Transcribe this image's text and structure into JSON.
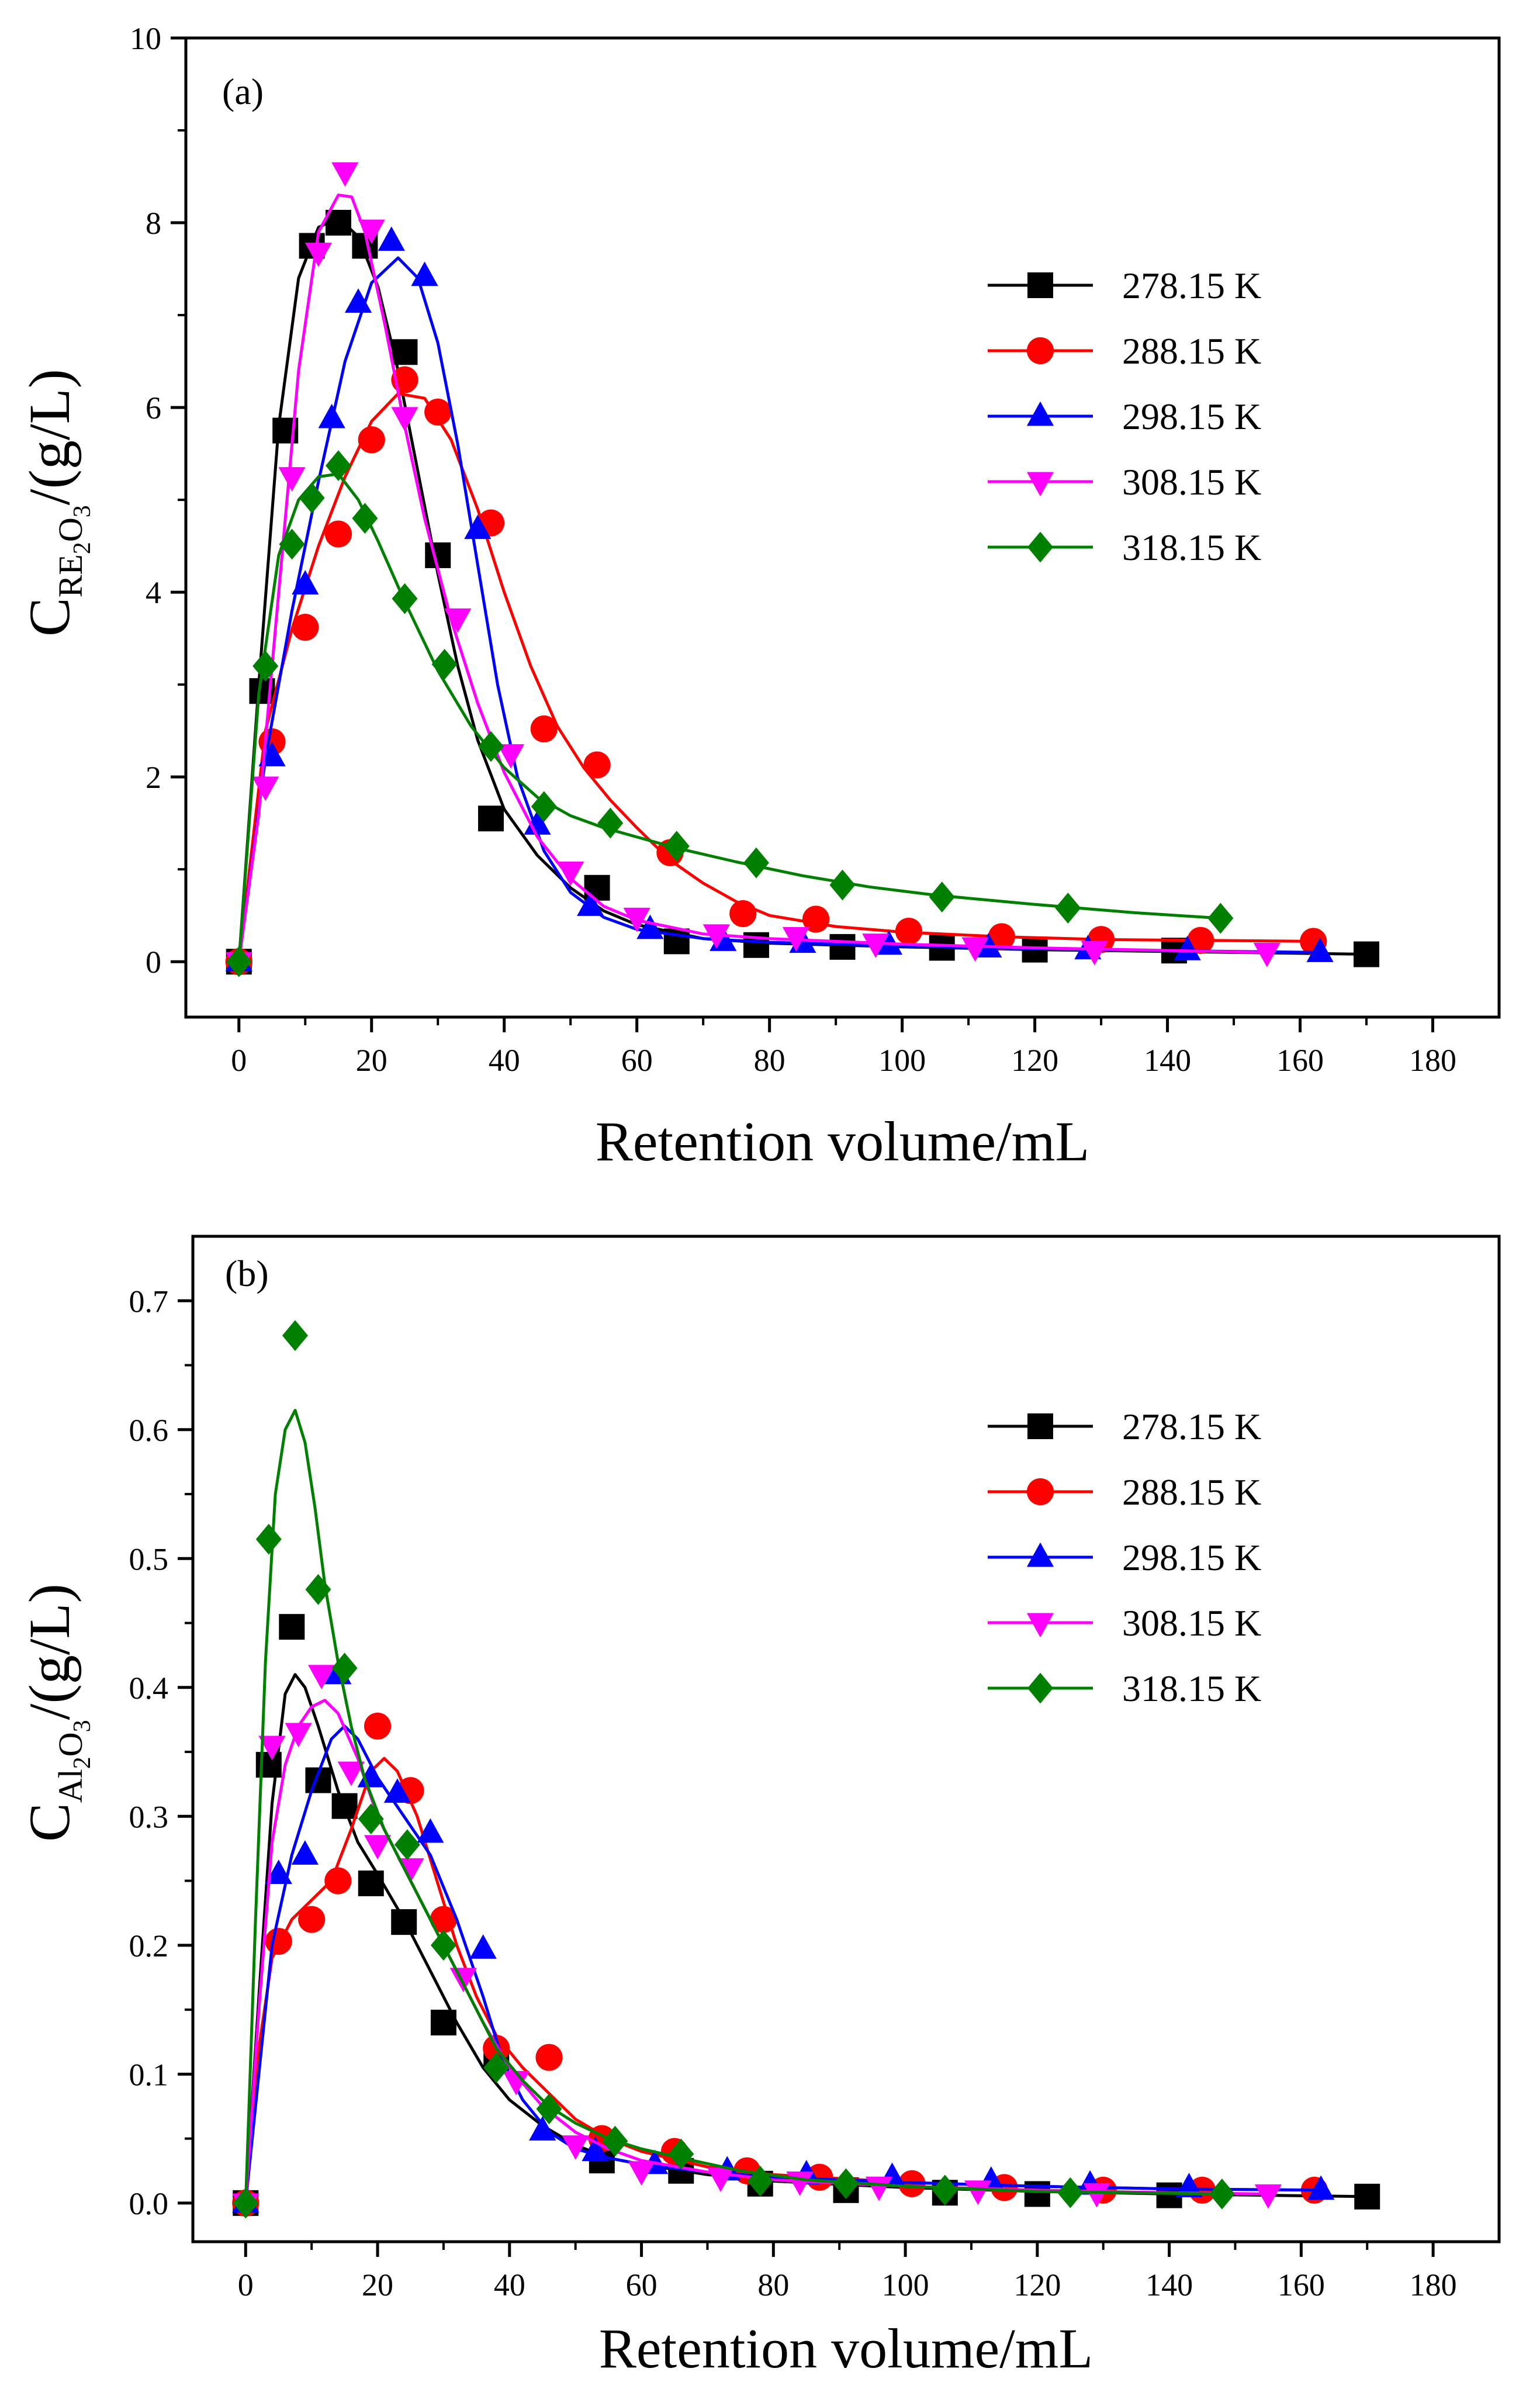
{
  "chart_data": [
    {
      "type": "scatter",
      "panel_label": "(a)",
      "xlabel": "Retention volume/mL",
      "ylabel": {
        "main": "C",
        "sub1": "RE",
        "sub2": "2",
        "sub3": "O",
        "sub4": "3",
        "rest": "/(g/L)"
      },
      "xlim": [
        -8,
        190
      ],
      "ylim": [
        -0.6,
        10
      ],
      "xticks": [
        0,
        20,
        40,
        60,
        80,
        100,
        120,
        140,
        160,
        180
      ],
      "yticks": [
        0,
        2,
        4,
        6,
        8,
        10
      ],
      "xtick_labels": [
        "0",
        "20",
        "40",
        "60",
        "80",
        "100",
        "120",
        "140",
        "160",
        "180"
      ],
      "ytick_labels": [
        "0",
        "2",
        "4",
        "6",
        "8",
        "10"
      ],
      "legend_position": "right",
      "series": [
        {
          "name": "278.15 K",
          "color": "#000000",
          "marker": "square",
          "x": [
            0,
            3.5,
            7,
            11,
            15,
            19,
            25,
            30,
            38,
            54,
            66,
            78,
            91,
            106,
            120,
            141,
            170
          ],
          "y": [
            0,
            2.93,
            5.75,
            7.75,
            8.0,
            7.75,
            6.6,
            4.4,
            1.55,
            0.8,
            0.22,
            0.18,
            0.16,
            0.15,
            0.13,
            0.12,
            0.08
          ],
          "curve_x": [
            0,
            3,
            6,
            9,
            12,
            15,
            18,
            21,
            24,
            27,
            30,
            33,
            36,
            40,
            45,
            50,
            55,
            60,
            70,
            80,
            100,
            120,
            140,
            170
          ],
          "curve_y": [
            0,
            3.0,
            5.8,
            7.4,
            7.95,
            8.05,
            7.85,
            7.3,
            6.4,
            5.3,
            4.2,
            3.2,
            2.4,
            1.65,
            1.15,
            0.8,
            0.55,
            0.4,
            0.25,
            0.2,
            0.16,
            0.13,
            0.11,
            0.08
          ]
        },
        {
          "name": "288.15 K",
          "color": "#ff0000",
          "marker": "circle",
          "x": [
            0,
            5,
            10,
            15,
            20,
            25,
            30,
            38,
            46,
            54,
            65,
            76,
            87,
            101,
            115,
            130,
            145,
            162
          ],
          "y": [
            0,
            2.38,
            3.62,
            4.63,
            5.65,
            6.3,
            5.95,
            4.75,
            2.52,
            2.13,
            1.18,
            0.52,
            0.46,
            0.33,
            0.27,
            0.24,
            0.23,
            0.22
          ],
          "curve_x": [
            0,
            4,
            8,
            12,
            16,
            20,
            24,
            28,
            32,
            36,
            40,
            44,
            48,
            52,
            56,
            60,
            65,
            70,
            75,
            80,
            90,
            100,
            115,
            130,
            145,
            162
          ],
          "curve_y": [
            0,
            2.5,
            3.6,
            4.5,
            5.25,
            5.85,
            6.15,
            6.1,
            5.65,
            4.9,
            4.0,
            3.2,
            2.55,
            2.1,
            1.75,
            1.45,
            1.1,
            0.85,
            0.65,
            0.5,
            0.38,
            0.32,
            0.27,
            0.24,
            0.23,
            0.22
          ]
        },
        {
          "name": "298.15 K",
          "color": "#0000ff",
          "marker": "triangle-up",
          "x": [
            0,
            5,
            10,
            14,
            18,
            23,
            28,
            36,
            45,
            53,
            62,
            73,
            85,
            98,
            113,
            128,
            143,
            163
          ],
          "y": [
            0,
            2.22,
            4.08,
            5.88,
            7.13,
            7.8,
            7.42,
            4.68,
            1.48,
            0.6,
            0.35,
            0.22,
            0.2,
            0.18,
            0.15,
            0.13,
            0.12,
            0.1
          ],
          "curve_x": [
            0,
            4,
            8,
            12,
            16,
            20,
            24,
            27,
            30,
            33,
            36,
            39,
            42,
            46,
            50,
            55,
            60,
            70,
            80,
            100,
            120,
            140,
            163
          ],
          "curve_y": [
            0,
            2.2,
            3.8,
            5.2,
            6.5,
            7.35,
            7.62,
            7.4,
            6.7,
            5.6,
            4.3,
            3.0,
            2.0,
            1.2,
            0.75,
            0.48,
            0.35,
            0.25,
            0.21,
            0.17,
            0.14,
            0.12,
            0.1
          ]
        },
        {
          "name": "308.15 K",
          "color": "#ff00ff",
          "marker": "triangle-down",
          "x": [
            0,
            4,
            8,
            12,
            16,
            20,
            25,
            33,
            41,
            50,
            60,
            72,
            84,
            96,
            111,
            129,
            155
          ],
          "y": [
            0,
            1.9,
            5.25,
            7.68,
            8.55,
            7.93,
            5.9,
            3.72,
            2.25,
            0.98,
            0.48,
            0.3,
            0.27,
            0.2,
            0.16,
            0.12,
            0.1
          ],
          "curve_x": [
            0,
            3,
            6,
            9,
            12,
            15,
            17,
            19,
            22,
            25,
            28,
            32,
            36,
            40,
            45,
            50,
            55,
            60,
            70,
            80,
            100,
            120,
            155
          ],
          "curve_y": [
            0,
            1.6,
            4.0,
            6.4,
            7.9,
            8.3,
            8.28,
            7.9,
            6.9,
            5.8,
            4.8,
            3.7,
            2.8,
            2.05,
            1.35,
            0.9,
            0.6,
            0.45,
            0.3,
            0.25,
            0.19,
            0.15,
            0.1
          ]
        },
        {
          "name": "318.15 K",
          "color": "#008000",
          "marker": "diamond",
          "x": [
            0,
            4,
            8,
            11,
            15,
            19,
            25,
            31,
            38,
            46,
            56,
            66,
            78,
            91,
            106,
            125,
            148
          ],
          "y": [
            0,
            3.2,
            4.52,
            5.02,
            5.37,
            4.8,
            3.93,
            3.22,
            2.33,
            1.68,
            1.5,
            1.25,
            1.07,
            0.83,
            0.7,
            0.58,
            0.47
          ],
          "curve_x": [
            0,
            3,
            6,
            9,
            12,
            15,
            18,
            21,
            25,
            30,
            35,
            40,
            45,
            50,
            55,
            60,
            66,
            75,
            85,
            95,
            105,
            120,
            135,
            148
          ],
          "curve_y": [
            0,
            2.9,
            4.4,
            5.0,
            5.25,
            5.28,
            5.0,
            4.55,
            3.9,
            3.15,
            2.55,
            2.1,
            1.78,
            1.58,
            1.45,
            1.35,
            1.23,
            1.08,
            0.93,
            0.81,
            0.72,
            0.62,
            0.53,
            0.47
          ]
        }
      ]
    },
    {
      "type": "scatter",
      "panel_label": "(b)",
      "xlabel": "Retention volume/mL",
      "ylabel": {
        "main": "C",
        "sub1": "Al",
        "sub2": "2",
        "sub3": "O",
        "sub4": "3",
        "rest": "/(g/L)"
      },
      "xlim": [
        -8,
        190
      ],
      "ylim": [
        -0.03,
        0.75
      ],
      "xticks": [
        0,
        20,
        40,
        60,
        80,
        100,
        120,
        140,
        160,
        180
      ],
      "yticks": [
        0,
        0.1,
        0.2,
        0.3,
        0.4,
        0.5,
        0.6,
        0.7
      ],
      "xtick_labels": [
        "0",
        "20",
        "40",
        "60",
        "80",
        "100",
        "120",
        "140",
        "160",
        "180"
      ],
      "ytick_labels": [
        "0.0",
        "0.1",
        "0.2",
        "0.3",
        "0.4",
        "0.5",
        "0.6",
        "0.7"
      ],
      "legend_position": "right",
      "series": [
        {
          "name": "278.15 K",
          "color": "#000000",
          "marker": "square",
          "x": [
            0,
            3.5,
            7,
            11,
            15,
            19,
            24,
            30,
            38,
            54,
            66,
            78,
            91,
            106,
            120,
            140,
            170
          ],
          "y": [
            0,
            0.34,
            0.447,
            0.328,
            0.308,
            0.248,
            0.218,
            0.14,
            0.113,
            0.033,
            0.025,
            0.015,
            0.01,
            0.008,
            0.007,
            0.006,
            0.005
          ],
          "curve_x": [
            0,
            2,
            4,
            6,
            7.5,
            9,
            11,
            14,
            17,
            20,
            24,
            28,
            32,
            36,
            40,
            45,
            50,
            55,
            60,
            70,
            80,
            100,
            120,
            140,
            170
          ],
          "curve_y": [
            0,
            0.16,
            0.31,
            0.395,
            0.41,
            0.4,
            0.37,
            0.32,
            0.28,
            0.255,
            0.22,
            0.18,
            0.14,
            0.105,
            0.08,
            0.06,
            0.045,
            0.035,
            0.03,
            0.022,
            0.017,
            0.012,
            0.009,
            0.007,
            0.005
          ]
        },
        {
          "name": "288.15 K",
          "color": "#ff0000",
          "marker": "circle",
          "x": [
            0,
            5,
            10,
            14,
            20,
            25,
            30,
            38,
            46,
            54,
            65,
            76,
            87,
            101,
            115,
            130,
            145,
            162
          ],
          "y": [
            0,
            0.203,
            0.22,
            0.25,
            0.37,
            0.32,
            0.22,
            0.12,
            0.113,
            0.05,
            0.04,
            0.025,
            0.02,
            0.015,
            0.012,
            0.01,
            0.01,
            0.01
          ],
          "curve_x": [
            0,
            2,
            4,
            7,
            10,
            13,
            16,
            19,
            21,
            23,
            26,
            29,
            32,
            35,
            38,
            42,
            46,
            50,
            55,
            60,
            70,
            80,
            100,
            120,
            140,
            162
          ],
          "curve_y": [
            0,
            0.12,
            0.19,
            0.22,
            0.235,
            0.25,
            0.29,
            0.335,
            0.345,
            0.335,
            0.3,
            0.25,
            0.2,
            0.16,
            0.13,
            0.105,
            0.085,
            0.065,
            0.05,
            0.04,
            0.028,
            0.022,
            0.016,
            0.013,
            0.011,
            0.01
          ]
        },
        {
          "name": "298.15 K",
          "color": "#0000ff",
          "marker": "triangle-up",
          "x": [
            0,
            5,
            9,
            14,
            19,
            23,
            28,
            36,
            45,
            53,
            62,
            73,
            85,
            98,
            113,
            128,
            143,
            163
          ],
          "y": [
            0,
            0.255,
            0.27,
            0.41,
            0.33,
            0.318,
            0.287,
            0.197,
            0.056,
            0.04,
            0.03,
            0.025,
            0.022,
            0.02,
            0.017,
            0.014,
            0.012,
            0.01
          ],
          "curve_x": [
            0,
            2,
            4,
            7,
            10,
            13,
            15,
            17,
            20,
            24,
            28,
            32,
            36,
            39,
            42,
            46,
            50,
            55,
            60,
            70,
            80,
            100,
            120,
            140,
            163
          ],
          "curve_y": [
            0,
            0.1,
            0.2,
            0.27,
            0.32,
            0.36,
            0.37,
            0.36,
            0.33,
            0.3,
            0.27,
            0.22,
            0.16,
            0.11,
            0.08,
            0.055,
            0.042,
            0.035,
            0.03,
            0.024,
            0.02,
            0.016,
            0.013,
            0.011,
            0.01
          ]
        },
        {
          "name": "308.15 K",
          "color": "#ff00ff",
          "marker": "triangle-down",
          "x": [
            0,
            4,
            8,
            11.5,
            16,
            20,
            25,
            33,
            41,
            50,
            60,
            72,
            84,
            96,
            111,
            129,
            155
          ],
          "y": [
            0,
            0.355,
            0.365,
            0.41,
            0.335,
            0.278,
            0.26,
            0.175,
            0.095,
            0.045,
            0.025,
            0.02,
            0.017,
            0.013,
            0.01,
            0.008,
            0.007
          ],
          "curve_x": [
            0,
            2,
            4,
            6,
            8,
            10,
            12,
            14,
            17,
            20,
            24,
            28,
            32,
            36,
            40,
            45,
            50,
            55,
            60,
            70,
            80,
            100,
            120,
            140,
            155
          ],
          "curve_y": [
            0,
            0.15,
            0.28,
            0.34,
            0.37,
            0.385,
            0.39,
            0.38,
            0.345,
            0.3,
            0.26,
            0.22,
            0.18,
            0.14,
            0.105,
            0.075,
            0.055,
            0.042,
            0.033,
            0.024,
            0.018,
            0.013,
            0.01,
            0.008,
            0.007
          ]
        },
        {
          "name": "318.15 K",
          "color": "#008000",
          "marker": "diamond",
          "x": [
            0,
            3.5,
            7.5,
            11,
            15,
            19,
            24.5,
            30,
            38,
            46,
            56,
            66,
            78,
            91,
            106,
            125,
            148
          ],
          "y": [
            0,
            0.515,
            0.673,
            0.476,
            0.415,
            0.298,
            0.278,
            0.2,
            0.105,
            0.073,
            0.048,
            0.038,
            0.017,
            0.015,
            0.01,
            0.008,
            0.007
          ],
          "curve_x": [
            0,
            1.5,
            3,
            4.5,
            6,
            7.5,
            9,
            10.5,
            12,
            14,
            16,
            18,
            21,
            24,
            27,
            30,
            34,
            38,
            42,
            46,
            50,
            55,
            60,
            66,
            75,
            85,
            100,
            120,
            148
          ],
          "curve_y": [
            0,
            0.22,
            0.42,
            0.55,
            0.6,
            0.615,
            0.59,
            0.54,
            0.48,
            0.42,
            0.37,
            0.33,
            0.29,
            0.26,
            0.23,
            0.2,
            0.16,
            0.12,
            0.095,
            0.075,
            0.062,
            0.05,
            0.042,
            0.035,
            0.025,
            0.018,
            0.013,
            0.009,
            0.007
          ]
        }
      ]
    }
  ]
}
